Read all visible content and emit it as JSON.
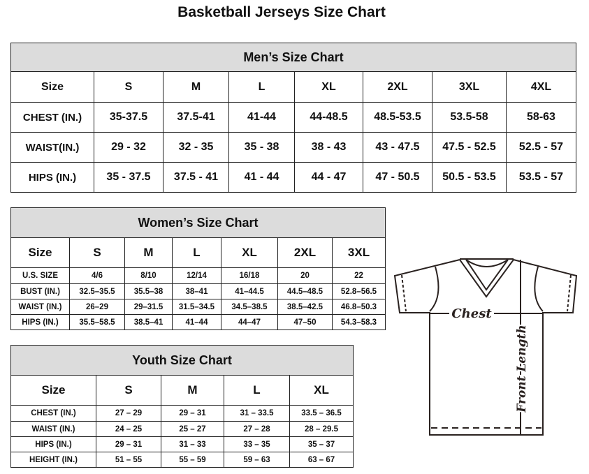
{
  "title": "Basketball Jerseys Size Chart",
  "men": {
    "caption": "Men’s Size Chart",
    "header": [
      "Size",
      "S",
      "M",
      "L",
      "XL",
      "2XL",
      "3XL",
      "4XL"
    ],
    "rows": [
      [
        "CHEST (IN.)",
        "35-37.5",
        "37.5-41",
        "41-44",
        "44-48.5",
        "48.5-53.5",
        "53.5-58",
        "58-63"
      ],
      [
        "WAIST(IN.)",
        "29 - 32",
        "32 - 35",
        "35 - 38",
        "38 - 43",
        "43 - 47.5",
        "47.5 - 52.5",
        "52.5 - 57"
      ],
      [
        "HIPS (IN.)",
        "35 - 37.5",
        "37.5 - 41",
        "41 - 44",
        "44 - 47",
        "47 - 50.5",
        "50.5 - 53.5",
        "53.5 - 57"
      ]
    ]
  },
  "women": {
    "caption": "Women’s Size Chart",
    "header": [
      "Size",
      "S",
      "M",
      "L",
      "XL",
      "2XL",
      "3XL"
    ],
    "rows": [
      [
        "U.S. SIZE",
        "4/6",
        "8/10",
        "12/14",
        "16/18",
        "20",
        "22"
      ],
      [
        "BUST (IN.)",
        "32.5–35.5",
        "35.5–38",
        "38–41",
        "41–44.5",
        "44.5–48.5",
        "52.8–56.5"
      ],
      [
        "WAIST (IN.)",
        "26–29",
        "29–31.5",
        "31.5–34.5",
        "34.5–38.5",
        "38.5–42.5",
        "46.8–50.3"
      ],
      [
        "HIPS (IN.)",
        "35.5–58.5",
        "38.5–41",
        "41–44",
        "44–47",
        "47–50",
        "54.3–58.3"
      ]
    ]
  },
  "youth": {
    "caption": "Youth Size Chart",
    "header": [
      "Size",
      "S",
      "M",
      "L",
      "XL"
    ],
    "rows": [
      [
        "CHEST (IN.)",
        "27 – 29",
        "29 – 31",
        "31 – 33.5",
        "33.5 – 36.5"
      ],
      [
        "WAIST (IN.)",
        "24 – 25",
        "25 – 27",
        "27 – 28",
        "28 – 29.5"
      ],
      [
        "HIPS (IN.)",
        "29 – 31",
        "31 – 33",
        "33 – 35",
        "35 – 37"
      ],
      [
        "HEIGHT (IN.)",
        "51 – 55",
        "55 – 59",
        "59 – 63",
        "63 – 67"
      ]
    ]
  },
  "diagram": {
    "chest_label": "Chest",
    "length_label": "Front Length"
  }
}
